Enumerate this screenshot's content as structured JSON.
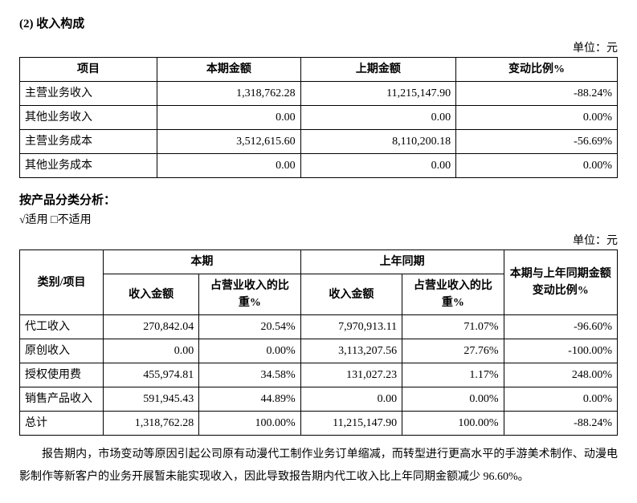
{
  "section_title": "(2) 收入构成",
  "unit_label": "单位：元",
  "table1": {
    "headers": [
      "项目",
      "本期金额",
      "上期金额",
      "变动比例%"
    ],
    "rows": [
      [
        "主营业务收入",
        "1,318,762.28",
        "11,215,147.90",
        "-88.24%"
      ],
      [
        "其他业务收入",
        "0.00",
        "0.00",
        "0.00%"
      ],
      [
        "主营业务成本",
        "3,512,615.60",
        "8,110,200.18",
        "-56.69%"
      ],
      [
        "其他业务成本",
        "0.00",
        "0.00",
        "0.00%"
      ]
    ],
    "col_widths": [
      "23%",
      "24%",
      "26%",
      "27%"
    ]
  },
  "sub_heading": "按产品分类分析：",
  "checkbox_line": "√适用 □不适用",
  "table2": {
    "header_row1": {
      "c0": "类别/项目",
      "c1": "本期",
      "c2": "上年同期",
      "c3": "本期与上年同期金额变动比例%"
    },
    "header_row2": [
      "收入金额",
      "占营业收入的比重%",
      "收入金额",
      "占营业收入的比重%"
    ],
    "rows": [
      [
        "代工收入",
        "270,842.04",
        "20.54%",
        "7,970,913.11",
        "71.07%",
        "-96.60%"
      ],
      [
        "原创收入",
        "0.00",
        "0.00%",
        "3,113,207.56",
        "27.76%",
        "-100.00%"
      ],
      [
        "授权使用费",
        "455,974.81",
        "34.58%",
        "131,027.23",
        "1.17%",
        "248.00%"
      ],
      [
        "销售产品收入",
        "591,945.43",
        "44.89%",
        "0.00",
        "0.00%",
        "0.00%"
      ],
      [
        "总计",
        "1,318,762.28",
        "100.00%",
        "11,215,147.90",
        "100.00%",
        "-88.24%"
      ]
    ],
    "col_widths": [
      "14%",
      "16%",
      "17%",
      "17%",
      "17%",
      "19%"
    ]
  },
  "paragraph": "报告期内，市场变动等原因引起公司原有动漫代工制作业务订单缩减，而转型进行更高水平的手游美术制作、动漫电影制作等新客户的业务开展暂未能实现收入，因此导致报告期内代工收入比上年同期金额减少 96.60%。"
}
